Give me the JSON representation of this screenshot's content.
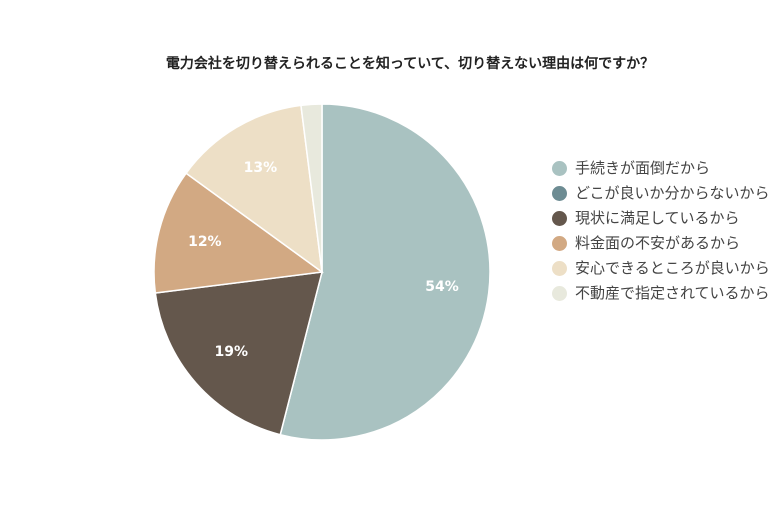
{
  "chart_data": {
    "type": "pie",
    "title": "電力会社を切り替えられることを知っていて、切り替えない理由は何ですか？",
    "categories": [
      "手続きが面倒だから",
      "どこが良いか分からないから",
      "現状に満足しているから",
      "料金面の不安があるから",
      "安心できるところが良いから",
      "不動産で指定されているから"
    ],
    "values": [
      54,
      0,
      19,
      12,
      13,
      2
    ],
    "value_labels": [
      "54%",
      null,
      "19%",
      "12%",
      "13%",
      null
    ],
    "colors": [
      "#a9c2c1",
      "#6d8c93",
      "#64574c",
      "#d2a983",
      "#eddfc6",
      "#e8e9dd"
    ]
  }
}
